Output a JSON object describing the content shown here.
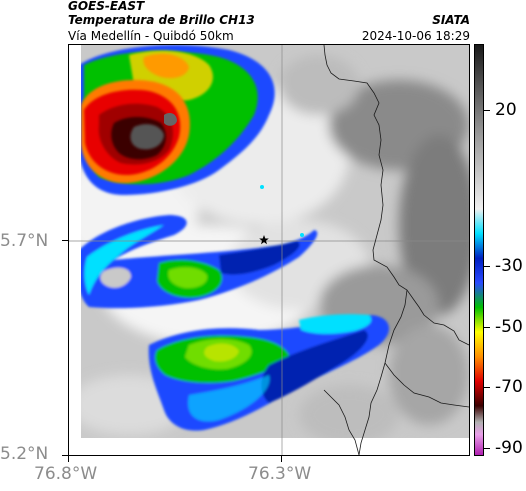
{
  "header": {
    "source": "GOES-EAST",
    "product": "Temperatura de Brillo CH13",
    "area": "Vía Medellín - Quibdó 50km",
    "organization": "SIATA",
    "datetime": "2024-10-06 18:29"
  },
  "map": {
    "lat_labels": [
      "5.7°N",
      "5.2°N"
    ],
    "lon_labels": [
      "76.8°W",
      "76.3°W"
    ],
    "marker": "star-marker"
  },
  "colorbar": {
    "tick_labels": [
      "20",
      "-30",
      "-50",
      "-70",
      "-90"
    ],
    "stops": [
      "#1a1a1a",
      "#9a9a9a",
      "#f0f0f0",
      "#00e0ff",
      "#0020c0",
      "#2a4aff",
      "#00c000",
      "#ffff00",
      "#ff9000",
      "#e00000",
      "#3a0000",
      "#b0b0b0",
      "#e8a0e8",
      "#b020b0"
    ]
  }
}
